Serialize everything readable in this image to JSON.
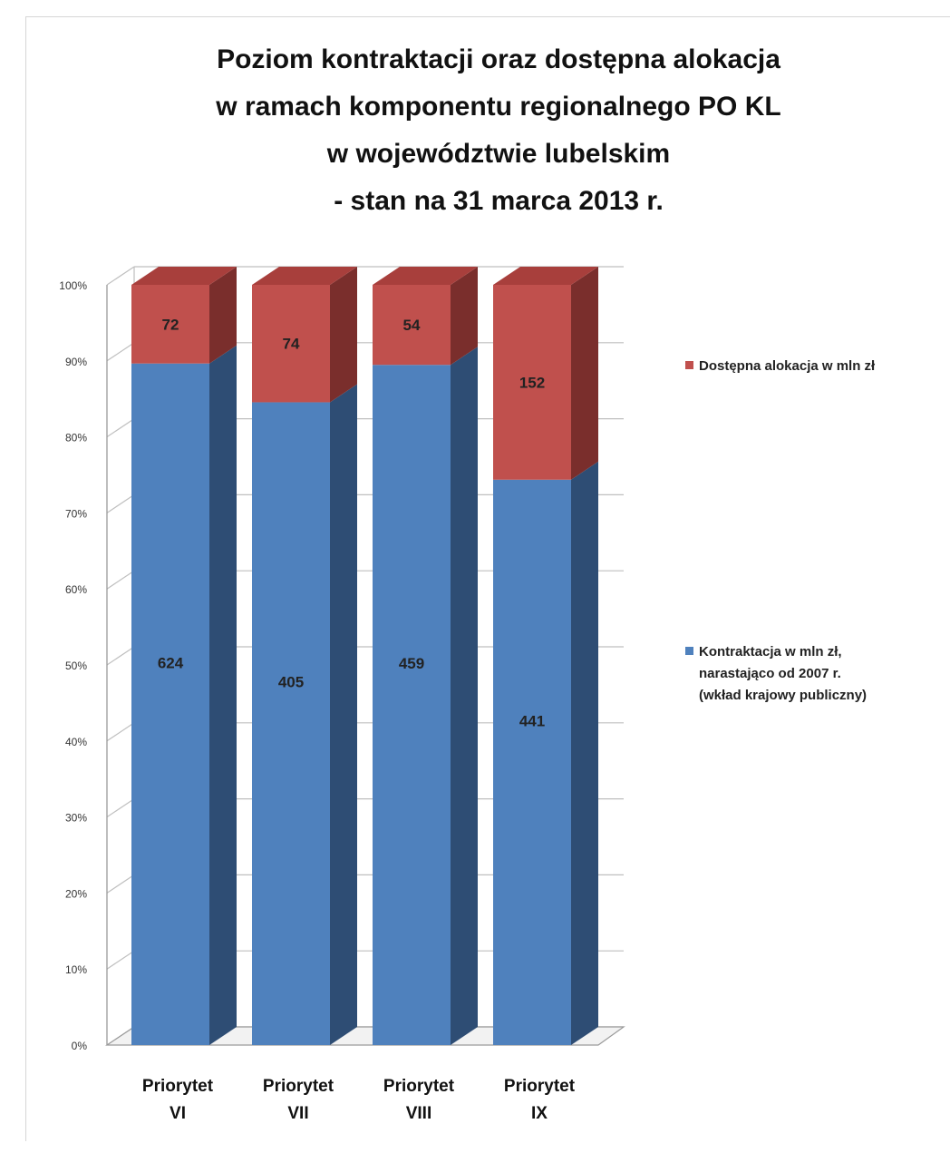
{
  "chart_data": {
    "type": "bar",
    "stacked": true,
    "normalized": true,
    "three_d": true,
    "title_lines": [
      "Poziom kontraktacji oraz dostępna alokacja",
      "w ramach komponentu regionalnego PO KL",
      "w województwie lubelskim",
      "- stan na 31 marca 2013 r."
    ],
    "categories": [
      [
        "Priorytet",
        "VI"
      ],
      [
        "Priorytet",
        "VII"
      ],
      [
        "Priorytet",
        "VIII"
      ],
      [
        "Priorytet",
        "IX"
      ]
    ],
    "series": [
      {
        "name_lines": [
          "Kontraktacja w mln zł,",
          "narastająco od 2007 r.",
          "(wkład krajowy publiczny)"
        ],
        "values": [
          624,
          405,
          459,
          441
        ],
        "color": "#4f81bd",
        "side_color": "#2e4d74",
        "top_color": "#6f97c8"
      },
      {
        "name_lines": [
          "Dostępna alokacja w mln zł"
        ],
        "values": [
          72,
          74,
          54,
          152
        ],
        "color": "#c0504d",
        "side_color": "#7a2e2c",
        "top_color": "#a83f3c"
      }
    ],
    "y_ticks": [
      "0%",
      "10%",
      "20%",
      "30%",
      "40%",
      "50%",
      "60%",
      "70%",
      "80%",
      "90%",
      "100%"
    ],
    "ylim": [
      0,
      100
    ],
    "grid": true,
    "legend_position": "right"
  }
}
